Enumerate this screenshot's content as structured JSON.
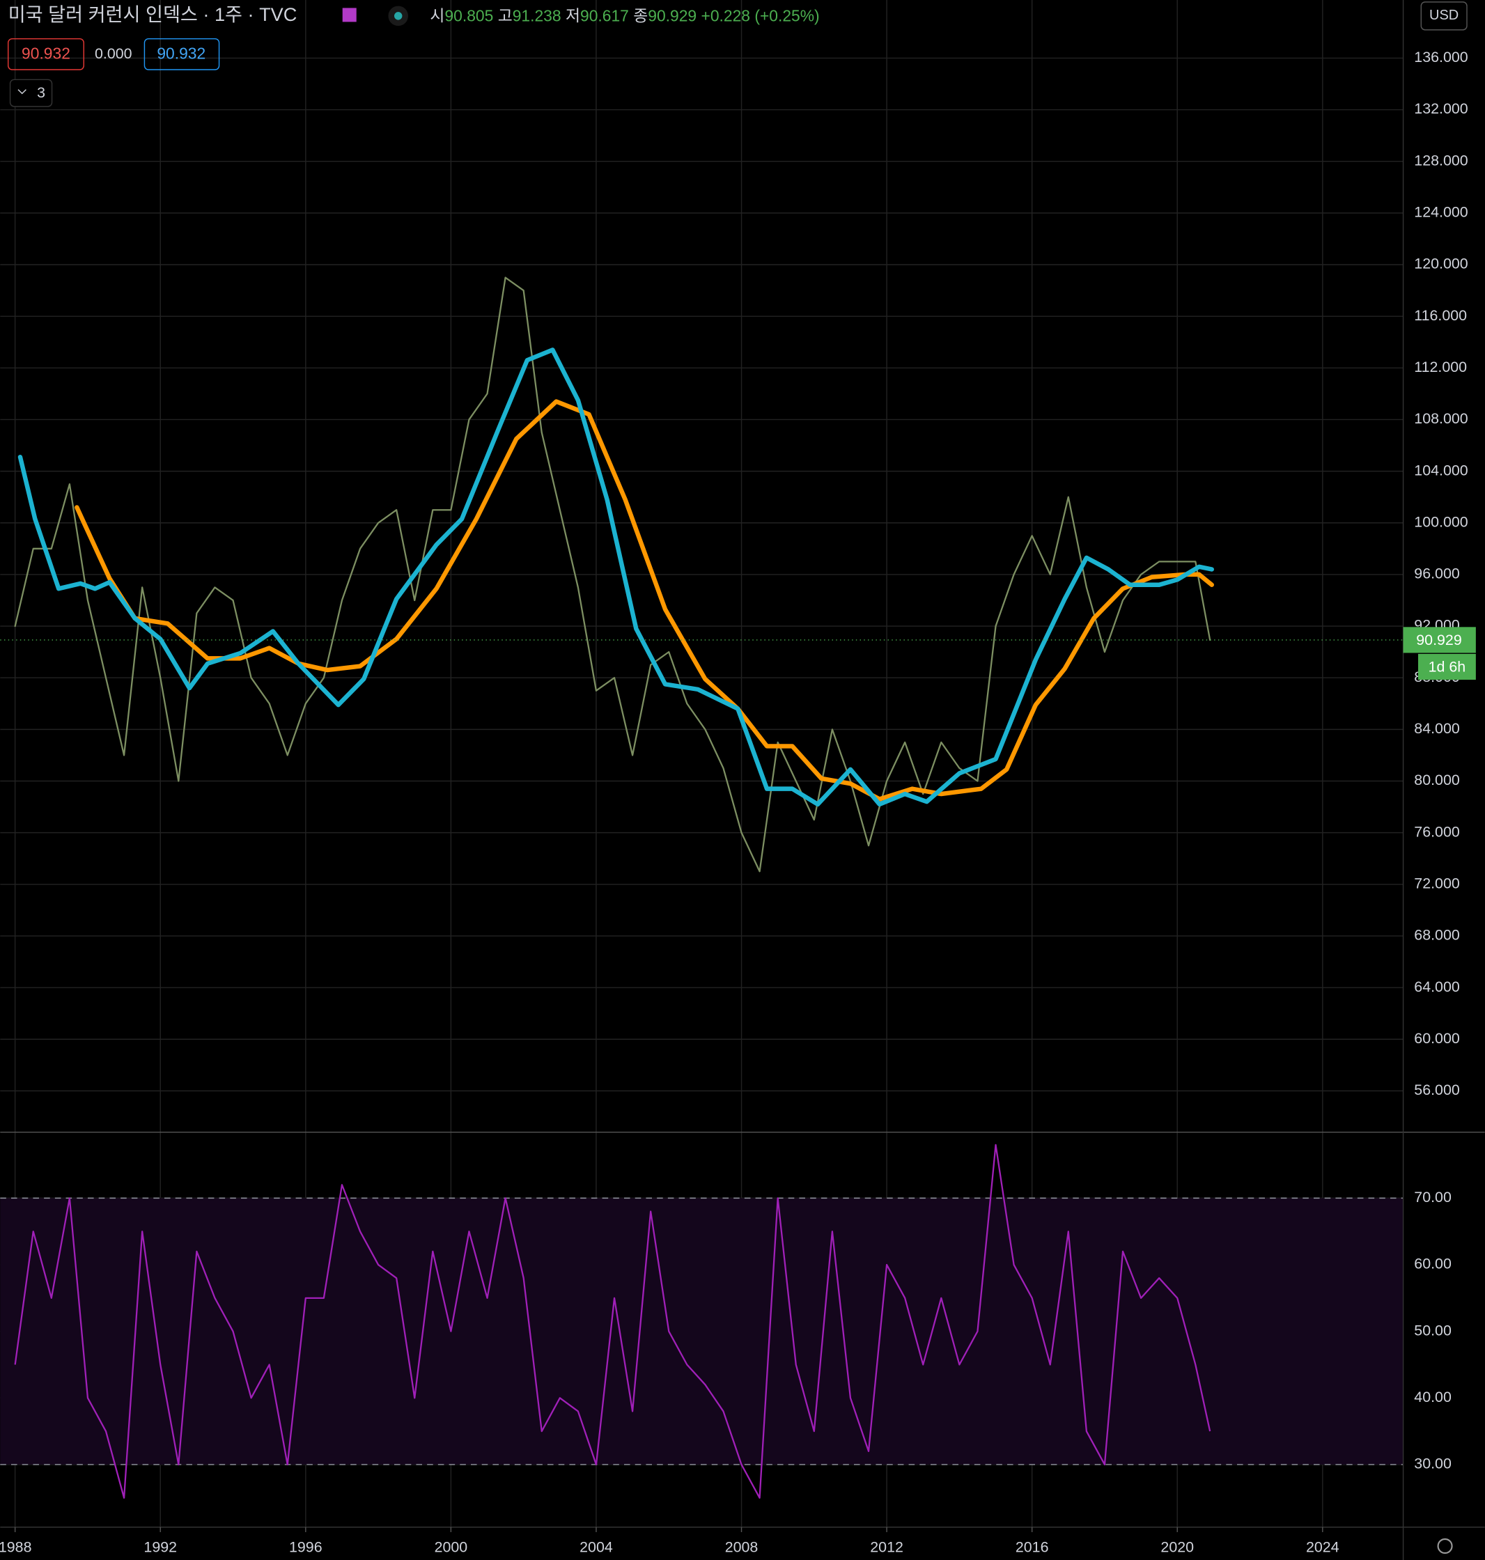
{
  "header": {
    "title": "미국 달러 커런시 인덱스 · 1주 · TVC",
    "ohlc": [
      {
        "label": "시",
        "value": "90.805"
      },
      {
        "label": "고",
        "value": "91.238"
      },
      {
        "label": "저",
        "value": "90.617"
      },
      {
        "label": "종",
        "value": "90.929"
      }
    ],
    "change": "+0.228 (+0.25%)"
  },
  "indicators": {
    "values": [
      "90.932",
      "0.000",
      "90.932"
    ],
    "collapsed_count": "3"
  },
  "currency": "USD",
  "chart_data": [
    {
      "type": "line",
      "grid": true,
      "xlim": [
        1987.59,
        2026.22
      ],
      "xticks": [
        1988,
        1992,
        1996,
        2000,
        2004,
        2008,
        2012,
        2016,
        2020,
        2024
      ],
      "ylim": [
        52.8,
        140.5
      ],
      "yticks": [
        {
          "value": 56,
          "label": "56.000"
        },
        {
          "value": 60,
          "label": "60.000"
        },
        {
          "value": 64,
          "label": "64.000"
        },
        {
          "value": 68,
          "label": "68.000"
        },
        {
          "value": 72,
          "label": "72.000"
        },
        {
          "value": 76,
          "label": "76.000"
        },
        {
          "value": 80,
          "label": "80.000"
        },
        {
          "value": 84,
          "label": "84.000"
        },
        {
          "value": 88,
          "label": "88.000"
        },
        {
          "value": 92,
          "label": "92.000"
        },
        {
          "value": 96,
          "label": "96.000"
        },
        {
          "value": 100,
          "label": "100.000"
        },
        {
          "value": 104,
          "label": "104.000"
        },
        {
          "value": 108,
          "label": "108.000"
        },
        {
          "value": 112,
          "label": "112.000"
        },
        {
          "value": 116,
          "label": "116.000"
        },
        {
          "value": 120,
          "label": "120.000"
        },
        {
          "value": 124,
          "label": "124.000"
        },
        {
          "value": 128,
          "label": "128.000"
        },
        {
          "value": 132,
          "label": "132.000"
        },
        {
          "value": 136,
          "label": "136.000"
        }
      ],
      "last_value": 90.929,
      "last_color": "#4caf50",
      "countdown": "1d 6h",
      "series": [
        {
          "color": "#7d8f62",
          "x": [
            1988.0,
            1988.5,
            1989.0,
            1989.5,
            1990.0,
            1990.5,
            1991.0,
            1991.5,
            1992.0,
            1992.5,
            1993.0,
            1993.5,
            1994.0,
            1994.5,
            1995.0,
            1995.5,
            1996.0,
            1996.5,
            1997.0,
            1997.5,
            1998.0,
            1998.5,
            1999.0,
            1999.5,
            2000.0,
            2000.5,
            2001.0,
            2001.5,
            2002.0,
            2002.5,
            2003.0,
            2003.5,
            2004.0,
            2004.5,
            2005.0,
            2005.5,
            2006.0,
            2006.5,
            2007.0,
            2007.5,
            2008.0,
            2008.5,
            2009.0,
            2009.5,
            2010.0,
            2010.5,
            2011.0,
            2011.5,
            2012.0,
            2012.5,
            2013.0,
            2013.5,
            2014.0,
            2014.5,
            2015.0,
            2015.5,
            2016.0,
            2016.5,
            2017.0,
            2017.5,
            2018.0,
            2018.5,
            2019.0,
            2019.5,
            2020.0,
            2020.5,
            2020.9
          ],
          "values": [
            92,
            98,
            98,
            103,
            94,
            88,
            82,
            95,
            88,
            80,
            93,
            95,
            94,
            88,
            86,
            82,
            86,
            88,
            94,
            98,
            100,
            101,
            94,
            101,
            101,
            108,
            110,
            119,
            118,
            107,
            101,
            95,
            87,
            88,
            82,
            89,
            90,
            86,
            84,
            81,
            76,
            73,
            83,
            80,
            77,
            84,
            80,
            75,
            80,
            83,
            79,
            83,
            81,
            80,
            92,
            96,
            99,
            96,
            102,
            95,
            90,
            94,
            96,
            97,
            97,
            97,
            90.929
          ]
        },
        {
          "color": "#ff9800",
          "x": [
            1989.7,
            1990.6,
            1991.3,
            1992.2,
            1993.3,
            1994.2,
            1995.0,
            1995.8,
            1996.6,
            1997.5,
            1998.5,
            1999.6,
            2000.7,
            2001.8,
            2002.9,
            2003.8,
            2004.8,
            2005.9,
            2007.0,
            2007.9,
            2008.7,
            2009.4,
            2010.2,
            2011.0,
            2011.8,
            2012.7,
            2013.5,
            2014.6,
            2015.3,
            2016.1,
            2016.9,
            2017.7,
            2018.5,
            2019.3,
            2020.2,
            2020.6,
            2020.95
          ],
          "values": [
            101.2,
            95.7,
            92.6,
            92.2,
            89.5,
            89.5,
            90.3,
            89.1,
            88.6,
            88.9,
            91.0,
            94.9,
            100.3,
            106.5,
            109.4,
            108.4,
            101.8,
            93.3,
            87.9,
            85.6,
            82.7,
            82.7,
            80.2,
            79.8,
            78.6,
            79.4,
            79.0,
            79.4,
            80.9,
            85.9,
            88.7,
            92.6,
            94.9,
            95.8,
            96.0,
            96.0,
            95.2
          ]
        },
        {
          "color": "#1cb3d1",
          "x": [
            1988.14,
            1988.55,
            1989.2,
            1989.8,
            1990.2,
            1990.6,
            1991.3,
            1992.0,
            1992.8,
            1993.3,
            1994.2,
            1995.1,
            1995.8,
            1996.9,
            1997.6,
            1998.5,
            1999.6,
            2000.3,
            2001.3,
            2002.1,
            2002.8,
            2003.5,
            2004.3,
            2005.1,
            2005.9,
            2006.8,
            2007.9,
            2008.7,
            2009.4,
            2010.1,
            2011.0,
            2011.8,
            2012.5,
            2013.1,
            2014.0,
            2015.0,
            2016.1,
            2016.9,
            2017.5,
            2018.1,
            2018.7,
            2019.5,
            2020.0,
            2020.6,
            2020.95
          ],
          "values": [
            105.1,
            100.3,
            94.9,
            95.3,
            94.9,
            95.4,
            92.6,
            91.0,
            87.2,
            89.1,
            89.9,
            91.6,
            89.1,
            85.9,
            87.9,
            94.1,
            98.3,
            100.3,
            107.2,
            112.6,
            113.4,
            109.5,
            101.8,
            91.8,
            87.5,
            87.1,
            85.6,
            79.4,
            79.4,
            78.2,
            80.9,
            78.2,
            79.0,
            78.4,
            80.6,
            81.7,
            89.4,
            94.1,
            97.3,
            96.4,
            95.2,
            95.2,
            95.6,
            96.6,
            96.4
          ]
        }
      ]
    },
    {
      "type": "line",
      "grid": true,
      "color": "#a020b8",
      "xlim": [
        1987.59,
        2026.22
      ],
      "xticks": [
        1988,
        1992,
        1996,
        2000,
        2004,
        2008,
        2012,
        2016,
        2020,
        2024
      ],
      "ylim": [
        20.6,
        79.9
      ],
      "yticks": [
        {
          "value": 30,
          "label": "30.00"
        },
        {
          "value": 40,
          "label": "40.00"
        },
        {
          "value": 50,
          "label": "50.00"
        },
        {
          "value": 60,
          "label": "60.00"
        },
        {
          "value": 70,
          "label": "70.00"
        }
      ],
      "levels": [
        30,
        70
      ],
      "x": [
        1988.0,
        1988.5,
        1989.0,
        1989.5,
        1990.0,
        1990.5,
        1991.0,
        1991.5,
        1992.0,
        1992.5,
        1993.0,
        1993.5,
        1994.0,
        1994.5,
        1995.0,
        1995.5,
        1996.0,
        1996.5,
        1997.0,
        1997.5,
        1998.0,
        1998.5,
        1999.0,
        1999.5,
        2000.0,
        2000.5,
        2001.0,
        2001.5,
        2002.0,
        2002.5,
        2003.0,
        2003.5,
        2004.0,
        2004.5,
        2005.0,
        2005.5,
        2006.0,
        2006.5,
        2007.0,
        2007.5,
        2008.0,
        2008.5,
        2009.0,
        2009.5,
        2010.0,
        2010.5,
        2011.0,
        2011.5,
        2012.0,
        2012.5,
        2013.0,
        2013.5,
        2014.0,
        2014.5,
        2015.0,
        2015.5,
        2016.0,
        2016.5,
        2017.0,
        2017.5,
        2018.0,
        2018.5,
        2019.0,
        2019.5,
        2020.0,
        2020.5,
        2020.9
      ],
      "values": [
        45,
        65,
        55,
        70,
        40,
        35,
        25,
        65,
        45,
        30,
        62,
        55,
        50,
        40,
        45,
        30,
        55,
        55,
        72,
        65,
        60,
        58,
        40,
        62,
        50,
        65,
        55,
        70,
        58,
        35,
        40,
        38,
        30,
        55,
        38,
        68,
        50,
        45,
        42,
        38,
        30,
        25,
        70,
        45,
        35,
        65,
        40,
        32,
        60,
        55,
        45,
        55,
        45,
        50,
        78,
        60,
        55,
        45,
        65,
        35,
        30,
        62,
        55,
        58,
        55,
        45,
        35
      ]
    }
  ]
}
